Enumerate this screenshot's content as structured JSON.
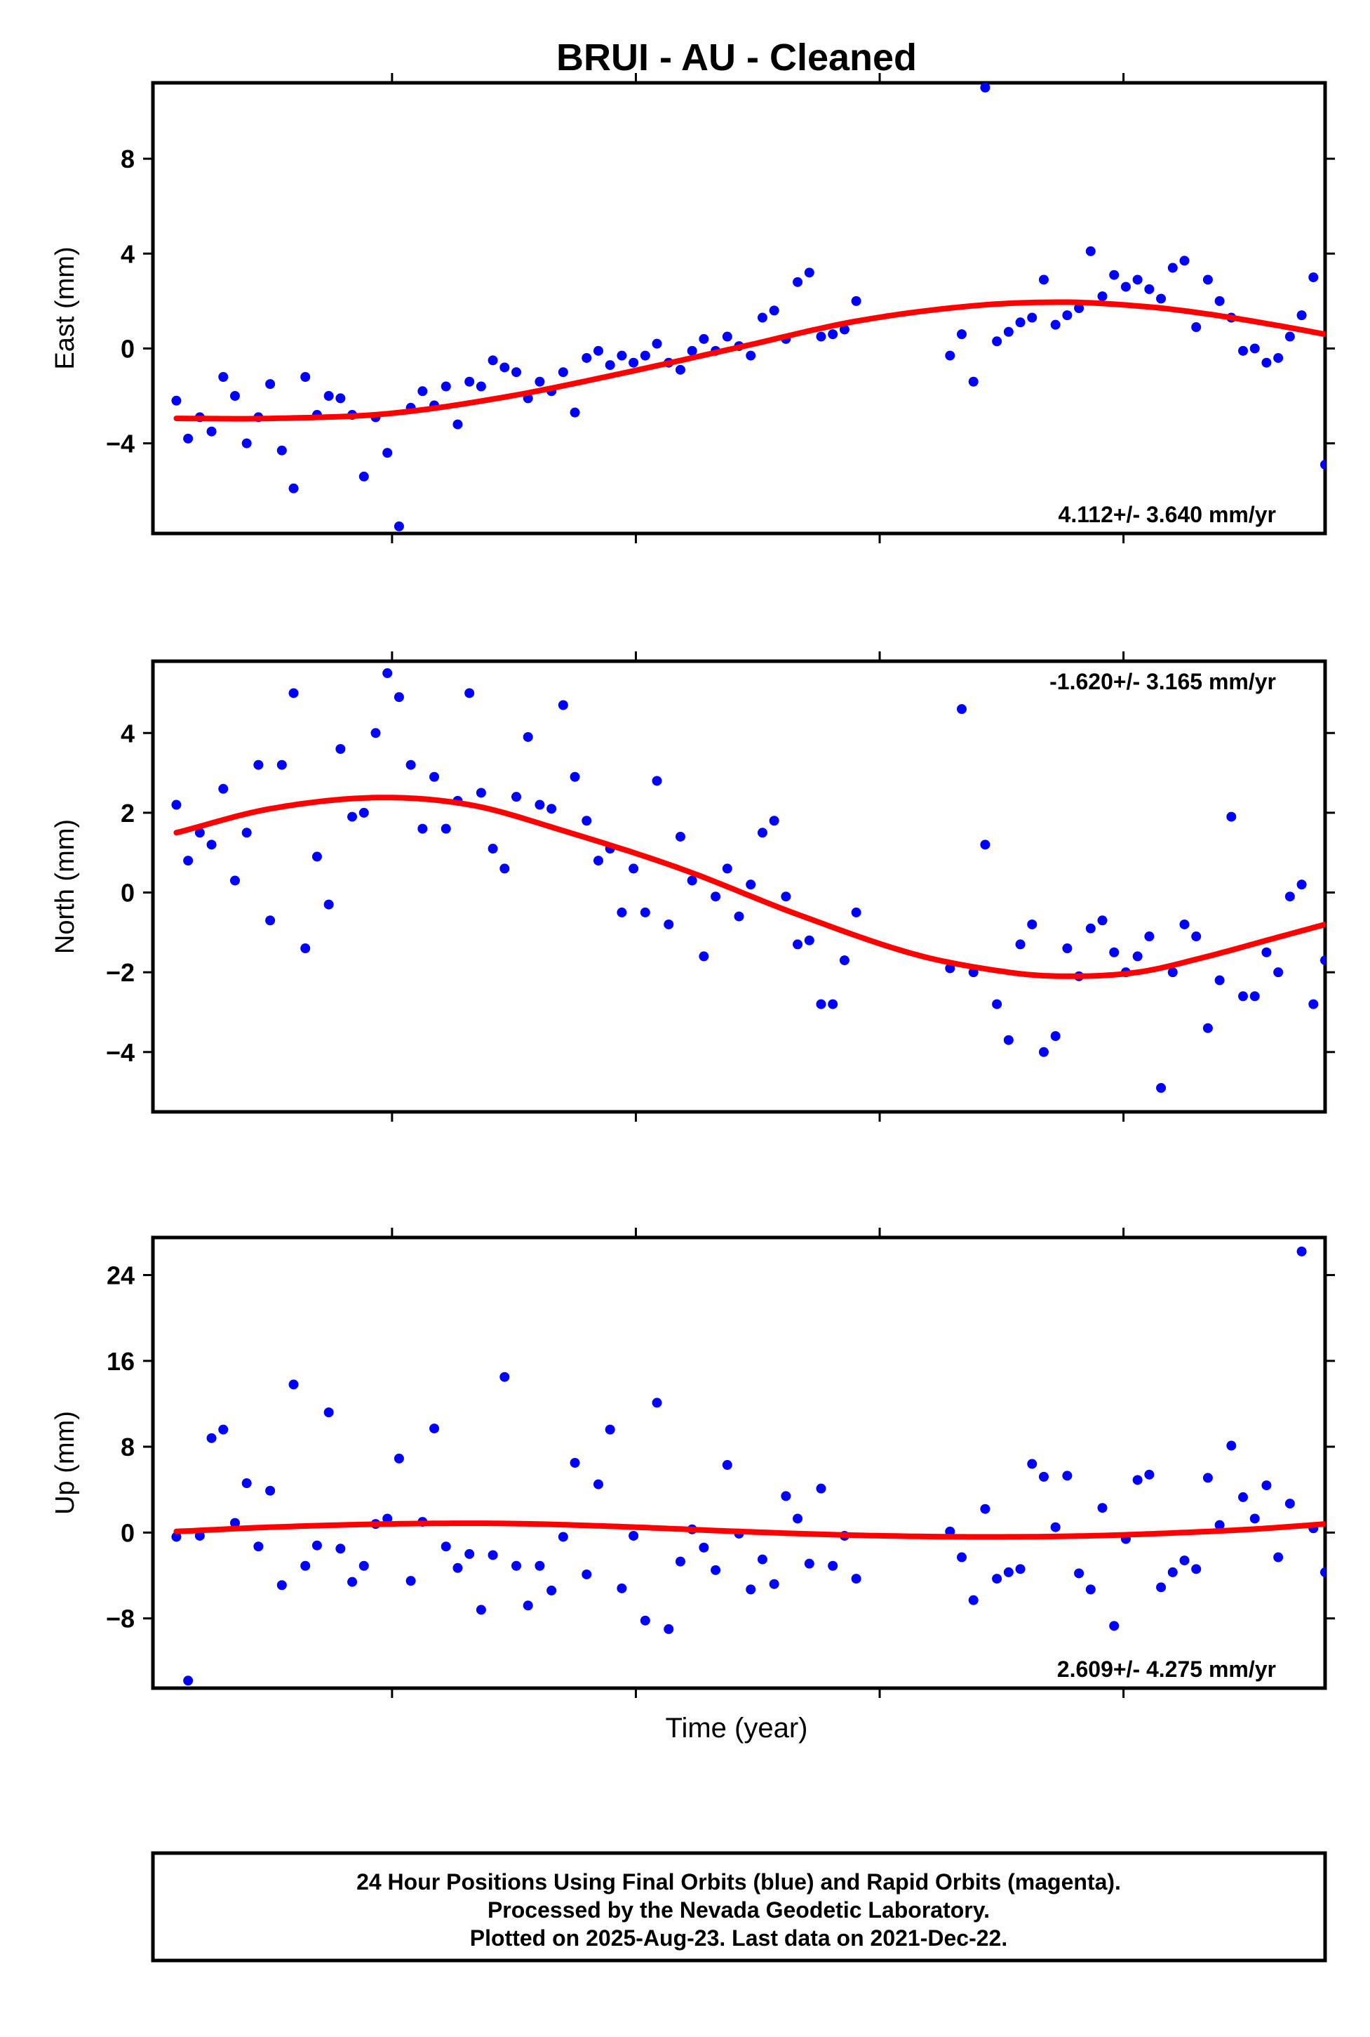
{
  "title": "BRUI  - AU - Cleaned",
  "xlabel": "Time (year)",
  "footer": {
    "line1": "24 Hour Positions Using Final Orbits (blue) and Rapid Orbits (magenta).",
    "line2": "Processed by the Nevada Geodetic Laboratory.",
    "line3": "Plotted on 2025-Aug-23. Last data on 2021-Dec-22."
  },
  "colors": {
    "points": "#0000ff",
    "fit": "#ff0000",
    "frame": "#000000"
  },
  "chart_data": [
    {
      "type": "scatter",
      "ylabel": "East (mm)",
      "ylim": [
        -7.8,
        11.2
      ],
      "yticks": [
        -4,
        0,
        4,
        8
      ],
      "ytick_labels": [
        "−4",
        "0",
        "4",
        "8"
      ],
      "rate_label": "4.112+/- 3.640 mm/yr",
      "rate_position": "bottom-right",
      "grid": false,
      "series": [
        {
          "kind": "points",
          "x": [
            0.02,
            0.03,
            0.04,
            0.05,
            0.06,
            0.07,
            0.08,
            0.09,
            0.1,
            0.11,
            0.12,
            0.13,
            0.14,
            0.15,
            0.16,
            0.17,
            0.18,
            0.19,
            0.2,
            0.21,
            0.22,
            0.23,
            0.24,
            0.25,
            0.26,
            0.27,
            0.28,
            0.29,
            0.3,
            0.31,
            0.32,
            0.33,
            0.34,
            0.35,
            0.36,
            0.37,
            0.38,
            0.39,
            0.4,
            0.41,
            0.42,
            0.43,
            0.44,
            0.45,
            0.46,
            0.47,
            0.48,
            0.49,
            0.5,
            0.51,
            0.52,
            0.53,
            0.54,
            0.55,
            0.56,
            0.57,
            0.58,
            0.59,
            0.6,
            0.68,
            0.69,
            0.7,
            0.71,
            0.72,
            0.73,
            0.74,
            0.75,
            0.76,
            0.77,
            0.78,
            0.79,
            0.8,
            0.81,
            0.82,
            0.83,
            0.84,
            0.85,
            0.86,
            0.87,
            0.88,
            0.89,
            0.9,
            0.91,
            0.92,
            0.93,
            0.94,
            0.95,
            0.96,
            0.97,
            0.98,
            0.99,
            1.0
          ],
          "y": [
            -2.2,
            -3.8,
            -2.9,
            -3.5,
            -1.2,
            -2.0,
            -4.0,
            -2.9,
            -1.5,
            -4.3,
            -5.9,
            -1.2,
            -2.8,
            -2.0,
            -2.1,
            -2.8,
            -5.4,
            -2.9,
            -4.4,
            -7.5,
            -2.5,
            -1.8,
            -2.4,
            -1.6,
            -3.2,
            -1.4,
            -1.6,
            -0.5,
            -0.8,
            -1.0,
            -2.1,
            -1.4,
            -1.8,
            -1.0,
            -2.7,
            -0.4,
            -0.1,
            -0.7,
            -0.3,
            -0.6,
            -0.3,
            0.2,
            -0.6,
            -0.9,
            -0.1,
            0.4,
            -0.1,
            0.5,
            0.1,
            -0.3,
            1.3,
            1.6,
            0.4,
            2.8,
            3.2,
            0.5,
            0.6,
            0.8,
            2.0,
            -0.3,
            0.6,
            -1.4,
            11.0,
            0.3,
            0.7,
            1.1,
            1.3,
            2.9,
            1.0,
            1.4,
            1.7,
            4.1,
            2.2,
            3.1,
            2.6,
            2.9,
            2.5,
            2.1,
            3.4,
            3.7,
            0.9,
            2.9,
            2.0,
            1.3,
            -0.1,
            0.0,
            -0.6,
            -0.4,
            0.5,
            1.4,
            3.0,
            -4.9
          ],
          "color": "#0000ff"
        },
        {
          "kind": "fit",
          "x": [
            0.02,
            0.1,
            0.2,
            0.3,
            0.4,
            0.5,
            0.6,
            0.7,
            0.78,
            0.85,
            0.9,
            0.95,
            1.0
          ],
          "y": [
            -2.95,
            -2.95,
            -2.75,
            -2.05,
            -1.05,
            0.05,
            1.15,
            1.8,
            1.95,
            1.75,
            1.45,
            1.05,
            0.6
          ],
          "color": "#ff0000"
        }
      ]
    },
    {
      "type": "scatter",
      "ylabel": "North (mm)",
      "ylim": [
        -5.5,
        5.8
      ],
      "yticks": [
        -4,
        -2,
        0,
        2,
        4
      ],
      "ytick_labels": [
        "−4",
        "−2",
        "0",
        "2",
        "4"
      ],
      "rate_label": "-1.620+/- 3.165 mm/yr",
      "rate_position": "top-right",
      "grid": false,
      "series": [
        {
          "kind": "points",
          "x": [
            0.02,
            0.03,
            0.04,
            0.05,
            0.06,
            0.07,
            0.08,
            0.09,
            0.1,
            0.11,
            0.12,
            0.13,
            0.14,
            0.15,
            0.16,
            0.17,
            0.18,
            0.19,
            0.2,
            0.21,
            0.22,
            0.23,
            0.24,
            0.25,
            0.26,
            0.27,
            0.28,
            0.29,
            0.3,
            0.31,
            0.32,
            0.33,
            0.34,
            0.35,
            0.36,
            0.37,
            0.38,
            0.39,
            0.4,
            0.41,
            0.42,
            0.43,
            0.44,
            0.45,
            0.46,
            0.47,
            0.48,
            0.49,
            0.5,
            0.51,
            0.52,
            0.53,
            0.54,
            0.55,
            0.56,
            0.57,
            0.58,
            0.59,
            0.6,
            0.68,
            0.69,
            0.7,
            0.71,
            0.72,
            0.73,
            0.74,
            0.75,
            0.76,
            0.77,
            0.78,
            0.79,
            0.8,
            0.81,
            0.82,
            0.83,
            0.84,
            0.85,
            0.86,
            0.87,
            0.88,
            0.89,
            0.9,
            0.91,
            0.92,
            0.93,
            0.94,
            0.95,
            0.96,
            0.97,
            0.98,
            0.99,
            1.0
          ],
          "y": [
            2.2,
            0.8,
            1.5,
            1.2,
            2.6,
            0.3,
            1.5,
            3.2,
            -0.7,
            3.2,
            5.0,
            -1.4,
            0.9,
            -0.3,
            3.6,
            1.9,
            2.0,
            4.0,
            5.5,
            4.9,
            3.2,
            1.6,
            2.9,
            1.6,
            2.3,
            5.0,
            2.5,
            1.1,
            0.6,
            2.4,
            3.9,
            2.2,
            2.1,
            4.7,
            2.9,
            1.8,
            0.8,
            1.1,
            -0.5,
            0.6,
            -0.5,
            2.8,
            -0.8,
            1.4,
            0.3,
            -1.6,
            -0.1,
            0.6,
            -0.6,
            0.2,
            1.5,
            1.8,
            -0.1,
            -1.3,
            -1.2,
            -2.8,
            -2.8,
            -1.7,
            -0.5,
            -1.9,
            4.6,
            -2.0,
            1.2,
            -2.8,
            -3.7,
            -1.3,
            -0.8,
            -4.0,
            -3.6,
            -1.4,
            -2.1,
            -0.9,
            -0.7,
            -1.5,
            -2.0,
            -1.6,
            -1.1,
            -4.9,
            -2.0,
            -0.8,
            -1.1,
            -3.4,
            -2.2,
            1.9,
            -2.6,
            -2.6,
            -1.5,
            -2.0,
            -0.1,
            0.2,
            -2.8,
            -1.7
          ],
          "color": "#0000ff"
        },
        {
          "kind": "fit",
          "x": [
            0.02,
            0.1,
            0.19,
            0.27,
            0.35,
            0.45,
            0.55,
            0.65,
            0.73,
            0.78,
            0.84,
            0.9,
            0.95,
            1.0
          ],
          "y": [
            1.5,
            2.1,
            2.38,
            2.2,
            1.55,
            0.6,
            -0.55,
            -1.55,
            -2.0,
            -2.1,
            -2.0,
            -1.6,
            -1.2,
            -0.8
          ],
          "color": "#ff0000"
        }
      ]
    },
    {
      "type": "scatter",
      "ylabel": "Up (mm)",
      "ylim": [
        -14.5,
        27.5
      ],
      "yticks": [
        -8,
        0,
        8,
        16,
        24
      ],
      "ytick_labels": [
        "−8",
        "0",
        "8",
        "16",
        "24"
      ],
      "rate_label": "2.609+/- 4.275 mm/yr",
      "rate_position": "bottom-right",
      "grid": false,
      "series": [
        {
          "kind": "points",
          "x": [
            0.02,
            0.03,
            0.04,
            0.05,
            0.06,
            0.07,
            0.08,
            0.09,
            0.1,
            0.11,
            0.12,
            0.13,
            0.14,
            0.15,
            0.16,
            0.17,
            0.18,
            0.19,
            0.2,
            0.21,
            0.22,
            0.23,
            0.24,
            0.25,
            0.26,
            0.27,
            0.28,
            0.29,
            0.3,
            0.31,
            0.32,
            0.33,
            0.34,
            0.35,
            0.36,
            0.37,
            0.38,
            0.39,
            0.4,
            0.41,
            0.42,
            0.43,
            0.44,
            0.45,
            0.46,
            0.47,
            0.48,
            0.49,
            0.5,
            0.51,
            0.52,
            0.53,
            0.54,
            0.55,
            0.56,
            0.57,
            0.58,
            0.59,
            0.6,
            0.68,
            0.69,
            0.7,
            0.71,
            0.72,
            0.73,
            0.74,
            0.75,
            0.76,
            0.77,
            0.78,
            0.79,
            0.8,
            0.81,
            0.82,
            0.83,
            0.84,
            0.85,
            0.86,
            0.87,
            0.88,
            0.89,
            0.9,
            0.91,
            0.92,
            0.93,
            0.94,
            0.95,
            0.96,
            0.97,
            0.98,
            0.99,
            1.0
          ],
          "y": [
            -0.4,
            -13.8,
            -0.3,
            8.8,
            9.6,
            0.9,
            4.6,
            -1.3,
            3.9,
            -4.9,
            13.8,
            -3.1,
            -1.2,
            11.2,
            -1.5,
            -4.6,
            -3.1,
            0.8,
            1.3,
            6.9,
            -4.5,
            1.0,
            9.7,
            -1.3,
            -3.3,
            -2.0,
            -7.2,
            -2.1,
            14.5,
            -3.1,
            -6.8,
            -3.1,
            -5.4,
            -0.4,
            6.5,
            -3.9,
            4.5,
            9.6,
            -5.2,
            -0.3,
            -8.2,
            12.1,
            -9.0,
            -2.7,
            0.3,
            -1.4,
            -3.5,
            6.3,
            -0.1,
            -5.3,
            -2.5,
            -4.8,
            3.4,
            1.3,
            -2.9,
            4.1,
            -3.1,
            -0.3,
            -4.3,
            0.1,
            -2.3,
            -6.3,
            2.2,
            -4.3,
            -3.7,
            -3.4,
            6.4,
            5.2,
            0.5,
            5.3,
            -3.8,
            -5.3,
            2.3,
            -8.7,
            -0.6,
            4.9,
            5.4,
            -5.1,
            -3.7,
            -2.6,
            -3.4,
            5.1,
            0.7,
            8.1,
            3.3,
            1.3,
            4.4,
            -2.3,
            2.7,
            26.2,
            0.4,
            -3.7
          ],
          "color": "#0000ff"
        },
        {
          "kind": "fit",
          "x": [
            0.02,
            0.1,
            0.2,
            0.3,
            0.4,
            0.5,
            0.6,
            0.7,
            0.8,
            0.9,
            0.95,
            1.0
          ],
          "y": [
            0.1,
            0.5,
            0.8,
            0.85,
            0.55,
            0.1,
            -0.25,
            -0.4,
            -0.3,
            0.1,
            0.4,
            0.8
          ],
          "color": "#ff0000"
        }
      ]
    }
  ]
}
